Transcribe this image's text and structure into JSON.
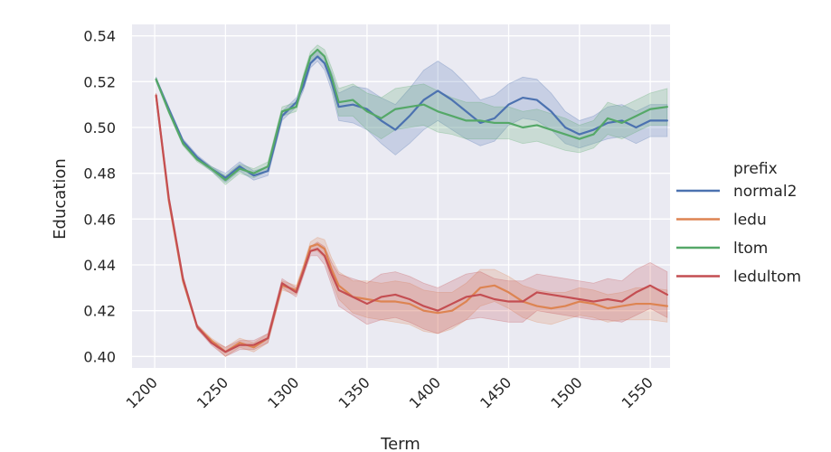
{
  "chart_data": {
    "type": "line",
    "title": "",
    "xlabel": "Term",
    "ylabel": "Education",
    "xlim": [
      1184,
      1564
    ],
    "ylim": [
      0.395,
      0.545
    ],
    "xticks": [
      1200,
      1250,
      1300,
      1350,
      1400,
      1450,
      1500,
      1550
    ],
    "xtick_labels": [
      "1200",
      "1250",
      "1300",
      "1350",
      "1400",
      "1450",
      "1500",
      "1550"
    ],
    "yticks": [
      0.4,
      0.42,
      0.44,
      0.46,
      0.48,
      0.5,
      0.52,
      0.54
    ],
    "ytick_labels": [
      "0.40",
      "0.42",
      "0.44",
      "0.46",
      "0.48",
      "0.50",
      "0.52",
      "0.54"
    ],
    "grid": true,
    "legend": {
      "title": "prefix",
      "placement": "right-outside"
    },
    "series": [
      {
        "name": "normal2",
        "color": "#4c72b0",
        "x": [
          1201,
          1210,
          1220,
          1230,
          1240,
          1250,
          1260,
          1270,
          1280,
          1290,
          1300,
          1305,
          1310,
          1315,
          1320,
          1325,
          1330,
          1340,
          1350,
          1360,
          1370,
          1380,
          1390,
          1400,
          1410,
          1420,
          1430,
          1440,
          1450,
          1460,
          1470,
          1480,
          1490,
          1500,
          1510,
          1520,
          1530,
          1540,
          1550,
          1562
        ],
        "y": [
          0.521,
          0.508,
          0.494,
          0.487,
          0.482,
          0.478,
          0.483,
          0.479,
          0.481,
          0.505,
          0.511,
          0.518,
          0.528,
          0.531,
          0.528,
          0.52,
          0.509,
          0.51,
          0.508,
          0.503,
          0.499,
          0.505,
          0.512,
          0.516,
          0.512,
          0.507,
          0.502,
          0.504,
          0.51,
          0.513,
          0.512,
          0.507,
          0.5,
          0.497,
          0.499,
          0.502,
          0.503,
          0.5,
          0.503,
          0.503
        ],
        "ci_width": [
          0.001,
          0.001,
          0.001,
          0.001,
          0.001,
          0.002,
          0.002,
          0.002,
          0.002,
          0.002,
          0.002,
          0.002,
          0.002,
          0.002,
          0.003,
          0.004,
          0.006,
          0.008,
          0.009,
          0.01,
          0.011,
          0.012,
          0.013,
          0.013,
          0.013,
          0.012,
          0.01,
          0.01,
          0.009,
          0.009,
          0.009,
          0.008,
          0.007,
          0.006,
          0.006,
          0.007,
          0.007,
          0.007,
          0.007,
          0.007
        ]
      },
      {
        "name": "ledu",
        "color": "#dd8452",
        "x": [
          1201,
          1210,
          1220,
          1230,
          1240,
          1250,
          1260,
          1270,
          1280,
          1290,
          1300,
          1305,
          1310,
          1315,
          1320,
          1325,
          1330,
          1340,
          1350,
          1360,
          1370,
          1380,
          1390,
          1400,
          1410,
          1420,
          1430,
          1440,
          1450,
          1460,
          1470,
          1480,
          1490,
          1500,
          1510,
          1520,
          1530,
          1540,
          1550,
          1562
        ],
        "y": [
          0.514,
          0.468,
          0.433,
          0.413,
          0.407,
          0.402,
          0.406,
          0.404,
          0.408,
          0.431,
          0.429,
          0.438,
          0.448,
          0.449,
          0.447,
          0.438,
          0.431,
          0.426,
          0.425,
          0.424,
          0.424,
          0.423,
          0.42,
          0.419,
          0.42,
          0.424,
          0.43,
          0.431,
          0.428,
          0.424,
          0.422,
          0.421,
          0.422,
          0.424,
          0.423,
          0.421,
          0.422,
          0.423,
          0.423,
          0.422
        ],
        "ci_width": [
          0.001,
          0.001,
          0.001,
          0.001,
          0.001,
          0.002,
          0.002,
          0.002,
          0.002,
          0.002,
          0.002,
          0.002,
          0.002,
          0.003,
          0.004,
          0.005,
          0.006,
          0.007,
          0.008,
          0.008,
          0.009,
          0.009,
          0.009,
          0.009,
          0.008,
          0.008,
          0.008,
          0.007,
          0.007,
          0.007,
          0.007,
          0.007,
          0.006,
          0.006,
          0.006,
          0.006,
          0.006,
          0.007,
          0.007,
          0.007
        ]
      },
      {
        "name": "ltom",
        "color": "#55a868",
        "x": [
          1201,
          1210,
          1220,
          1230,
          1240,
          1250,
          1260,
          1270,
          1280,
          1290,
          1300,
          1305,
          1310,
          1315,
          1320,
          1325,
          1330,
          1340,
          1350,
          1360,
          1370,
          1380,
          1390,
          1400,
          1410,
          1420,
          1430,
          1440,
          1450,
          1460,
          1470,
          1480,
          1490,
          1500,
          1510,
          1520,
          1530,
          1540,
          1550,
          1562
        ],
        "y": [
          0.521,
          0.507,
          0.493,
          0.486,
          0.482,
          0.477,
          0.482,
          0.48,
          0.483,
          0.507,
          0.509,
          0.521,
          0.531,
          0.534,
          0.531,
          0.522,
          0.511,
          0.512,
          0.507,
          0.504,
          0.508,
          0.509,
          0.51,
          0.507,
          0.505,
          0.503,
          0.503,
          0.502,
          0.502,
          0.5,
          0.501,
          0.499,
          0.497,
          0.495,
          0.497,
          0.504,
          0.502,
          0.505,
          0.508,
          0.509
        ],
        "ci_width": [
          0.001,
          0.001,
          0.001,
          0.001,
          0.001,
          0.002,
          0.002,
          0.002,
          0.002,
          0.002,
          0.002,
          0.002,
          0.002,
          0.002,
          0.003,
          0.004,
          0.006,
          0.007,
          0.008,
          0.009,
          0.009,
          0.009,
          0.009,
          0.009,
          0.008,
          0.008,
          0.008,
          0.007,
          0.007,
          0.007,
          0.007,
          0.007,
          0.007,
          0.006,
          0.006,
          0.007,
          0.007,
          0.007,
          0.007,
          0.008
        ]
      },
      {
        "name": "ledultom",
        "color": "#c44e52",
        "x": [
          1201,
          1210,
          1220,
          1230,
          1240,
          1250,
          1260,
          1270,
          1280,
          1290,
          1300,
          1305,
          1310,
          1315,
          1320,
          1325,
          1330,
          1340,
          1350,
          1360,
          1370,
          1380,
          1390,
          1400,
          1410,
          1420,
          1430,
          1440,
          1450,
          1460,
          1470,
          1480,
          1490,
          1500,
          1510,
          1520,
          1530,
          1540,
          1550,
          1562
        ],
        "y": [
          0.514,
          0.469,
          0.434,
          0.413,
          0.406,
          0.402,
          0.405,
          0.405,
          0.408,
          0.432,
          0.428,
          0.437,
          0.446,
          0.447,
          0.444,
          0.436,
          0.429,
          0.426,
          0.423,
          0.426,
          0.427,
          0.425,
          0.422,
          0.42,
          0.423,
          0.426,
          0.427,
          0.425,
          0.424,
          0.424,
          0.428,
          0.427,
          0.426,
          0.425,
          0.424,
          0.425,
          0.424,
          0.428,
          0.431,
          0.427
        ],
        "ci_width": [
          0.001,
          0.001,
          0.001,
          0.001,
          0.001,
          0.002,
          0.002,
          0.002,
          0.002,
          0.002,
          0.002,
          0.002,
          0.002,
          0.003,
          0.004,
          0.005,
          0.007,
          0.008,
          0.009,
          0.01,
          0.01,
          0.01,
          0.01,
          0.01,
          0.01,
          0.01,
          0.01,
          0.009,
          0.009,
          0.009,
          0.008,
          0.008,
          0.008,
          0.008,
          0.008,
          0.009,
          0.009,
          0.01,
          0.01,
          0.01
        ]
      }
    ]
  },
  "colors": {
    "plot_background": "#eaeaf2",
    "grid": "#ffffff",
    "text": "#262626"
  }
}
